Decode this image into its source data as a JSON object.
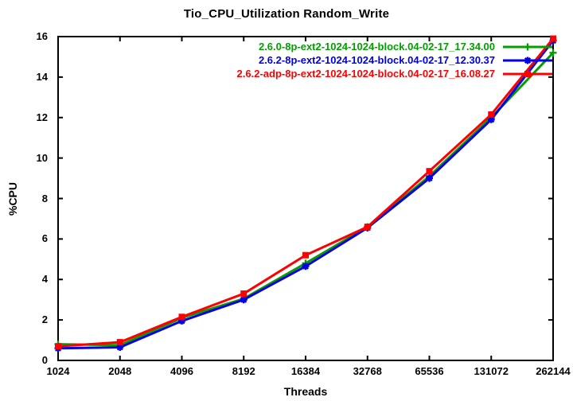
{
  "title": "Tio_CPU_Utilization Random_Write",
  "chart_data": {
    "type": "line",
    "title": "Tio_CPU_Utilization Random_Write",
    "xlabel": "Threads",
    "ylabel": "%CPU",
    "x_scale": "log2-categorical",
    "categories": [
      "1024",
      "2048",
      "4096",
      "8192",
      "16384",
      "32768",
      "65536",
      "131072",
      "262144"
    ],
    "y_ticks": [
      0,
      2,
      4,
      6,
      8,
      10,
      12,
      14,
      16
    ],
    "ylim": [
      0,
      16
    ],
    "grid": false,
    "legend_position": "top-right-inside",
    "border_color": "#000000",
    "series": [
      {
        "name": "2.6.0-8p-ext2-1024-1024-block.04-02-17_17.34.00",
        "color": "#00A000",
        "marker": "plus",
        "values": [
          0.8,
          0.75,
          2.1,
          3.05,
          4.8,
          6.6,
          9.1,
          12.0,
          15.2
        ]
      },
      {
        "name": "2.6.2-8p-ext2-1024-1024-block.04-02-17_12.30.37",
        "color": "#0000E8",
        "marker": "asterisk",
        "values": [
          0.6,
          0.65,
          1.95,
          3.0,
          4.65,
          6.55,
          9.0,
          11.9,
          15.8
        ]
      },
      {
        "name": "2.6.2-adp-8p-ext2-1024-1024-block.04-02-17_16.08.27",
        "color": "#FF0000",
        "marker": "filled-square",
        "values": [
          0.7,
          0.9,
          2.15,
          3.3,
          5.2,
          6.6,
          9.35,
          12.15,
          15.9
        ]
      }
    ]
  }
}
